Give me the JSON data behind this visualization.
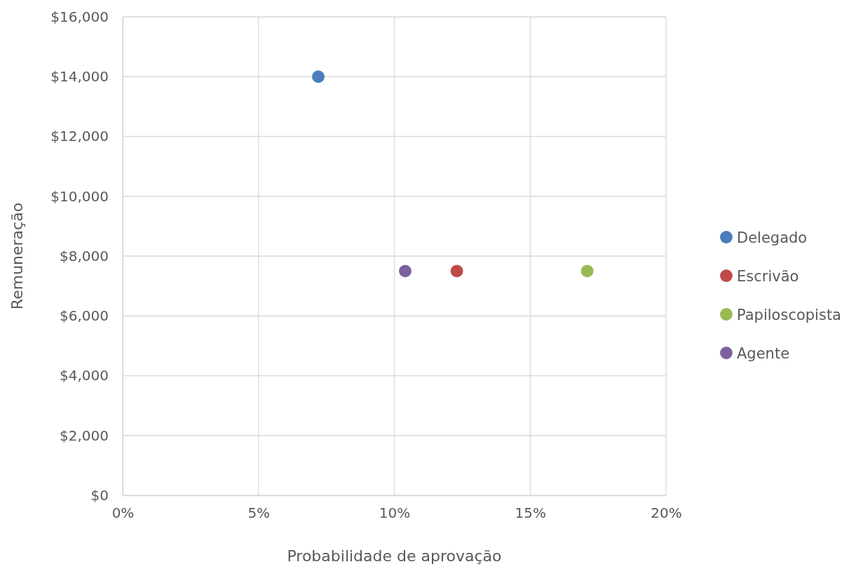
{
  "chart_data": {
    "type": "scatter",
    "xlabel": "Probabilidade de aprovação",
    "ylabel": "Remuneração",
    "xlim": [
      0,
      20
    ],
    "xticks": [
      {
        "value": 0,
        "label": "0%"
      },
      {
        "value": 5,
        "label": "5%"
      },
      {
        "value": 10,
        "label": "10%"
      },
      {
        "value": 15,
        "label": "15%"
      },
      {
        "value": 20,
        "label": "20%"
      }
    ],
    "ylim": [
      0,
      16000
    ],
    "yticks": [
      {
        "value": 0,
        "label": "$0"
      },
      {
        "value": 2000,
        "label": "$2,000"
      },
      {
        "value": 4000,
        "label": "$4,000"
      },
      {
        "value": 6000,
        "label": "$6,000"
      },
      {
        "value": 8000,
        "label": "$8,000"
      },
      {
        "value": 10000,
        "label": "$10,000"
      },
      {
        "value": 12000,
        "label": "$12,000"
      },
      {
        "value": 14000,
        "label": "$14,000"
      },
      {
        "value": 16000,
        "label": "$16,000"
      }
    ],
    "grid": true,
    "legend": "right",
    "marker": "circle",
    "series": [
      {
        "name": "Delegado",
        "color": "#4a7ebb",
        "x": [
          7.2
        ],
        "values": [
          14000
        ]
      },
      {
        "name": "Escrivão",
        "color": "#be4b48",
        "x": [
          12.3
        ],
        "values": [
          7500
        ]
      },
      {
        "name": "Papiloscopista",
        "color": "#98b954",
        "x": [
          17.1
        ],
        "values": [
          7500
        ]
      },
      {
        "name": "Agente",
        "color": "#7d60a0",
        "x": [
          10.4
        ],
        "values": [
          7500
        ]
      }
    ]
  }
}
